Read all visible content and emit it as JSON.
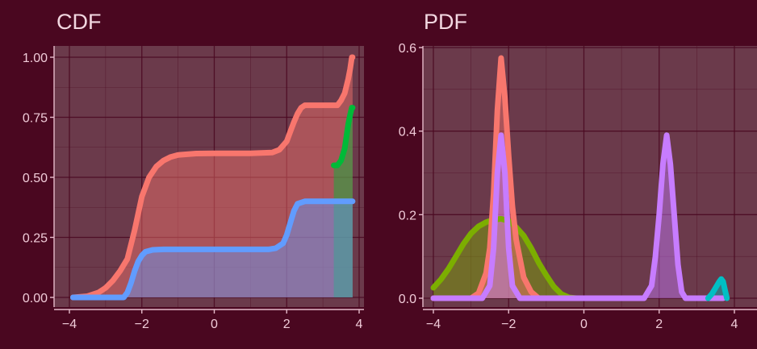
{
  "chart_data": [
    {
      "type": "area",
      "title": "CDF",
      "xlim": [
        -4,
        4
      ],
      "ylim": [
        0,
        1
      ],
      "x_ticks": [
        -4,
        -2,
        0,
        2,
        4
      ],
      "y_ticks": [
        0,
        0.25,
        0.5,
        0.75,
        1.0
      ],
      "x_tick_labels": [
        "−4",
        "−2",
        "0",
        "2",
        "4"
      ],
      "y_tick_labels": [
        "0.00",
        "0.25",
        "0.50",
        "0.75",
        "1.00"
      ],
      "grid": true,
      "series": [
        {
          "color": "#f8766d",
          "points": [
            [
              -3.9,
              0.0
            ],
            [
              -3.5,
              0.005
            ],
            [
              -3.2,
              0.02
            ],
            [
              -3.0,
              0.04
            ],
            [
              -2.8,
              0.07
            ],
            [
              -2.6,
              0.11
            ],
            [
              -2.4,
              0.16
            ],
            [
              -2.2,
              0.28
            ],
            [
              -2.0,
              0.42
            ],
            [
              -1.8,
              0.5
            ],
            [
              -1.6,
              0.545
            ],
            [
              -1.4,
              0.57
            ],
            [
              -1.2,
              0.585
            ],
            [
              -1.0,
              0.593
            ],
            [
              -0.5,
              0.599
            ],
            [
              0.0,
              0.6
            ],
            [
              1.0,
              0.6
            ],
            [
              1.6,
              0.603
            ],
            [
              1.8,
              0.615
            ],
            [
              2.0,
              0.65
            ],
            [
              2.1,
              0.69
            ],
            [
              2.2,
              0.73
            ],
            [
              2.3,
              0.765
            ],
            [
              2.4,
              0.79
            ],
            [
              2.5,
              0.8
            ],
            [
              3.0,
              0.8
            ],
            [
              3.4,
              0.8
            ],
            [
              3.5,
              0.82
            ],
            [
              3.6,
              0.85
            ],
            [
              3.65,
              0.88
            ],
            [
              3.7,
              0.91
            ],
            [
              3.75,
              0.95
            ],
            [
              3.8,
              1.0
            ],
            [
              3.82,
              1.0
            ]
          ]
        },
        {
          "color": "#00ba38",
          "points": [
            [
              3.3,
              0.55
            ],
            [
              3.4,
              0.55
            ],
            [
              3.5,
              0.57
            ],
            [
              3.6,
              0.62
            ],
            [
              3.7,
              0.72
            ],
            [
              3.75,
              0.76
            ],
            [
              3.8,
              0.79
            ],
            [
              3.82,
              0.79
            ]
          ]
        },
        {
          "color": "#619cff",
          "points": [
            [
              -3.9,
              0.0
            ],
            [
              -2.5,
              0.0
            ],
            [
              -2.4,
              0.02
            ],
            [
              -2.3,
              0.06
            ],
            [
              -2.2,
              0.11
            ],
            [
              -2.1,
              0.15
            ],
            [
              -2.0,
              0.175
            ],
            [
              -1.9,
              0.19
            ],
            [
              -1.7,
              0.198
            ],
            [
              -1.4,
              0.2
            ],
            [
              0.0,
              0.2
            ],
            [
              1.5,
              0.2
            ],
            [
              1.7,
              0.205
            ],
            [
              1.9,
              0.225
            ],
            [
              2.0,
              0.26
            ],
            [
              2.1,
              0.31
            ],
            [
              2.2,
              0.36
            ],
            [
              2.3,
              0.39
            ],
            [
              2.5,
              0.4
            ],
            [
              3.0,
              0.4
            ],
            [
              3.82,
              0.4
            ]
          ]
        }
      ]
    },
    {
      "type": "area",
      "title": "PDF",
      "xlim": [
        -4,
        4
      ],
      "ylim": [
        0,
        0.6
      ],
      "x_ticks": [
        -4,
        -2,
        0,
        2,
        4
      ],
      "y_ticks": [
        0,
        0.2,
        0.4,
        0.6
      ],
      "x_tick_labels": [
        "−4",
        "−2",
        "0",
        "2",
        "4"
      ],
      "y_tick_labels": [
        "0.0",
        "0.2",
        "0.4",
        "0.6"
      ],
      "grid": true,
      "series": [
        {
          "color": "#7cae00",
          "points": [
            [
              -4.0,
              0.025
            ],
            [
              -3.8,
              0.045
            ],
            [
              -3.6,
              0.07
            ],
            [
              -3.4,
              0.1
            ],
            [
              -3.2,
              0.13
            ],
            [
              -3.0,
              0.155
            ],
            [
              -2.8,
              0.172
            ],
            [
              -2.6,
              0.182
            ],
            [
              -2.4,
              0.188
            ],
            [
              -2.2,
              0.19
            ],
            [
              -2.0,
              0.185
            ],
            [
              -1.8,
              0.17
            ],
            [
              -1.6,
              0.15
            ],
            [
              -1.4,
              0.12
            ],
            [
              -1.2,
              0.085
            ],
            [
              -1.0,
              0.055
            ],
            [
              -0.8,
              0.028
            ],
            [
              -0.6,
              0.01
            ],
            [
              -0.4,
              0.002
            ],
            [
              -0.2,
              0.0
            ]
          ]
        },
        {
          "color": "#f8766d",
          "points": [
            [
              -4.0,
              0.0
            ],
            [
              -3.0,
              0.0
            ],
            [
              -2.8,
              0.012
            ],
            [
              -2.6,
              0.06
            ],
            [
              -2.5,
              0.12
            ],
            [
              -2.4,
              0.25
            ],
            [
              -2.3,
              0.45
            ],
            [
              -2.2,
              0.575
            ],
            [
              -2.1,
              0.48
            ],
            [
              -2.0,
              0.34
            ],
            [
              -1.9,
              0.22
            ],
            [
              -1.8,
              0.14
            ],
            [
              -1.6,
              0.05
            ],
            [
              -1.4,
              0.015
            ],
            [
              -1.2,
              0.0
            ],
            [
              -1.0,
              0.0
            ]
          ]
        },
        {
          "color": "#c77cff",
          "points": [
            [
              -4.0,
              0.0
            ],
            [
              -2.7,
              0.0
            ],
            [
              -2.5,
              0.03
            ],
            [
              -2.4,
              0.12
            ],
            [
              -2.3,
              0.3
            ],
            [
              -2.2,
              0.39
            ],
            [
              -2.1,
              0.3
            ],
            [
              -2.0,
              0.12
            ],
            [
              -1.9,
              0.03
            ],
            [
              -1.7,
              0.0
            ],
            [
              1.6,
              0.0
            ],
            [
              1.8,
              0.03
            ],
            [
              1.9,
              0.1
            ],
            [
              2.0,
              0.2
            ],
            [
              2.1,
              0.32
            ],
            [
              2.2,
              0.39
            ],
            [
              2.3,
              0.32
            ],
            [
              2.4,
              0.2
            ],
            [
              2.5,
              0.08
            ],
            [
              2.6,
              0.015
            ],
            [
              2.7,
              0.0
            ],
            [
              3.7,
              0.0
            ]
          ]
        },
        {
          "color": "#00bfc4",
          "points": [
            [
              3.3,
              0.0
            ],
            [
              3.4,
              0.01
            ],
            [
              3.5,
              0.025
            ],
            [
              3.6,
              0.04
            ],
            [
              3.65,
              0.046
            ],
            [
              3.7,
              0.04
            ],
            [
              3.75,
              0.02
            ],
            [
              3.8,
              0.0
            ]
          ]
        }
      ]
    }
  ]
}
